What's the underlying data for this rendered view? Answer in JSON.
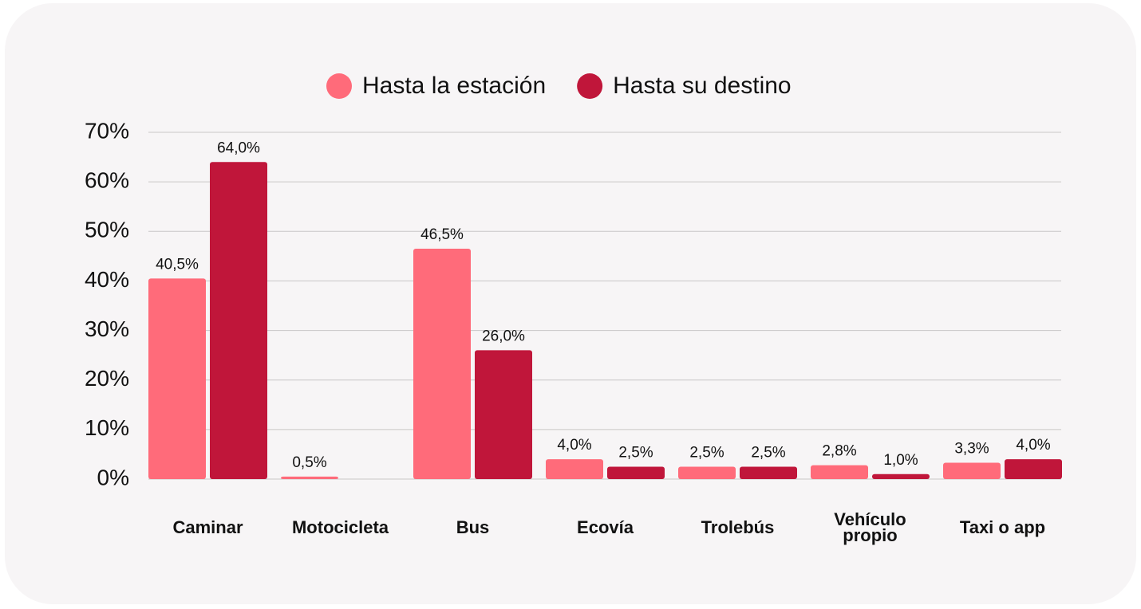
{
  "chart_data": {
    "type": "bar",
    "categories": [
      "Caminar",
      "Motocicleta",
      "Bus",
      "Ecovía",
      "Trolebús",
      "Vehículo propio",
      "Taxi o app"
    ],
    "series": [
      {
        "name": "Hasta la estación",
        "color": "#ff6b7a",
        "values": [
          40.5,
          0.5,
          46.5,
          4.0,
          2.5,
          2.8,
          3.3
        ],
        "value_labels": [
          "40,5%",
          "0,5%",
          "46,5%",
          "4,0%",
          "2,5%",
          "2,8%",
          "3,3%"
        ]
      },
      {
        "name": "Hasta su destino",
        "color": "#c0163a",
        "values": [
          64.0,
          null,
          26.0,
          2.5,
          2.5,
          1.0,
          4.0
        ],
        "value_labels": [
          "64,0%",
          null,
          "26,0%",
          "2,5%",
          "2,5%",
          "1,0%",
          "4,0%"
        ]
      }
    ],
    "ylim": [
      0,
      70
    ],
    "yticks": [
      {
        "value": 0,
        "label": "0%"
      },
      {
        "value": 10,
        "label": "10%"
      },
      {
        "value": 20,
        "label": "20%"
      },
      {
        "value": 30,
        "label": "30%"
      },
      {
        "value": 40,
        "label": "40%"
      },
      {
        "value": 50,
        "label": "50%"
      },
      {
        "value": 60,
        "label": "60%"
      },
      {
        "value": 70,
        "label": "70%"
      }
    ],
    "grid": true,
    "legend": "top"
  }
}
